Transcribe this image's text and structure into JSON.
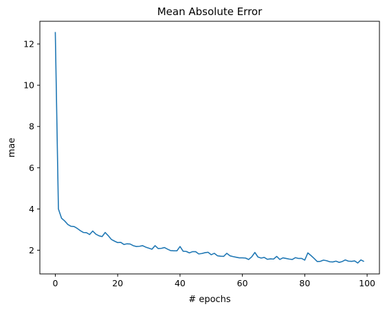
{
  "chart_data": {
    "type": "line",
    "title": "Mean Absolute Error",
    "xlabel": "# epochs",
    "ylabel": "mae",
    "xlim": [
      -4.95,
      103.95
    ],
    "ylim": [
      0.85,
      13.1
    ],
    "xticks": [
      0,
      20,
      40,
      60,
      80,
      100
    ],
    "yticks": [
      2,
      4,
      6,
      8,
      10,
      12
    ],
    "grid": false,
    "line_color": "#1f77b4",
    "series": [
      {
        "x": [
          0,
          1,
          2,
          3,
          4,
          5,
          6,
          7,
          8,
          9,
          10,
          11,
          12,
          13,
          14,
          15,
          16,
          17,
          18,
          19,
          20,
          21,
          22,
          23,
          24,
          25,
          26,
          27,
          28,
          29,
          30,
          31,
          32,
          33,
          34,
          35,
          36,
          37,
          38,
          39,
          40,
          41,
          42,
          43,
          44,
          45,
          46,
          47,
          48,
          49,
          50,
          51,
          52,
          53,
          54,
          55,
          56,
          57,
          58,
          59,
          60,
          61,
          62,
          63,
          64,
          65,
          66,
          67,
          68,
          69,
          70,
          71,
          72,
          73,
          74,
          75,
          76,
          77,
          78,
          79,
          80,
          81,
          82,
          83,
          84,
          85,
          86,
          87,
          88,
          89,
          90,
          91,
          92,
          93,
          94,
          95,
          96,
          97,
          98,
          99
        ],
        "values": [
          12.58,
          4.0,
          3.55,
          3.42,
          3.25,
          3.16,
          3.15,
          3.06,
          2.95,
          2.86,
          2.85,
          2.76,
          2.93,
          2.78,
          2.7,
          2.66,
          2.86,
          2.7,
          2.52,
          2.44,
          2.37,
          2.38,
          2.28,
          2.31,
          2.3,
          2.22,
          2.18,
          2.19,
          2.22,
          2.15,
          2.1,
          2.05,
          2.22,
          2.08,
          2.09,
          2.13,
          2.05,
          1.98,
          1.97,
          1.97,
          2.18,
          1.95,
          1.94,
          1.87,
          1.93,
          1.93,
          1.82,
          1.84,
          1.88,
          1.9,
          1.78,
          1.85,
          1.73,
          1.71,
          1.7,
          1.85,
          1.73,
          1.69,
          1.66,
          1.63,
          1.63,
          1.62,
          1.55,
          1.68,
          1.89,
          1.67,
          1.62,
          1.65,
          1.56,
          1.58,
          1.57,
          1.7,
          1.55,
          1.63,
          1.6,
          1.57,
          1.55,
          1.64,
          1.6,
          1.6,
          1.52,
          1.87,
          1.74,
          1.6,
          1.45,
          1.46,
          1.52,
          1.49,
          1.44,
          1.43,
          1.47,
          1.41,
          1.45,
          1.53,
          1.47,
          1.46,
          1.48,
          1.38,
          1.53,
          1.45
        ]
      }
    ]
  }
}
